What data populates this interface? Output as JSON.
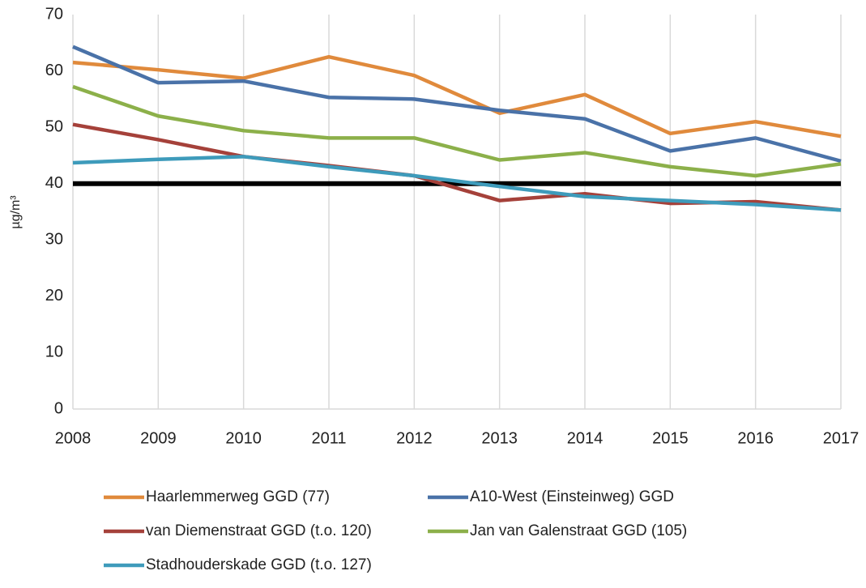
{
  "chart_data": {
    "type": "line",
    "y_label": "µg/m³",
    "x": [
      2008,
      2009,
      2010,
      2011,
      2012,
      2013,
      2014,
      2015,
      2016,
      2017
    ],
    "xlim": [
      2008,
      2017
    ],
    "xticks": [
      2008,
      2009,
      2010,
      2011,
      2012,
      2013,
      2014,
      2015,
      2016,
      2017
    ],
    "ylim": [
      0,
      70
    ],
    "yticks": [
      0,
      10,
      20,
      30,
      40,
      50,
      60,
      70
    ],
    "grid": "x",
    "legend": "bottom",
    "reference_line": {
      "value": 40,
      "color": "#000000"
    },
    "series": [
      {
        "name": "Haarlemmerweg GGD (77)",
        "color": "#e08a3c",
        "values": [
          61.5,
          60.2,
          58.7,
          62.5,
          59.2,
          52.5,
          55.8,
          48.9,
          51.0,
          48.4
        ]
      },
      {
        "name": "A10-West (Einsteinweg) GGD",
        "color": "#4a72a8",
        "values": [
          64.3,
          57.9,
          58.2,
          55.3,
          55.0,
          53.0,
          51.5,
          45.8,
          48.1,
          44.0
        ]
      },
      {
        "name": "van Diemenstraat GGD (t.o. 120)",
        "color": "#a5413a",
        "values": [
          50.5,
          47.8,
          44.8,
          43.2,
          41.4,
          37.0,
          38.2,
          36.5,
          36.8,
          35.3
        ]
      },
      {
        "name": "Jan van Galenstraat GGD (105)",
        "color": "#8cb04a",
        "values": [
          57.2,
          52.0,
          49.4,
          48.1,
          48.1,
          44.2,
          45.5,
          43.0,
          41.4,
          43.5
        ]
      },
      {
        "name": "Stadhouderskade GGD (t.o. 127)",
        "color": "#3e9bbb",
        "values": [
          43.7,
          44.3,
          44.8,
          43.0,
          41.4,
          39.5,
          37.7,
          37.0,
          36.3,
          35.3
        ]
      }
    ]
  }
}
